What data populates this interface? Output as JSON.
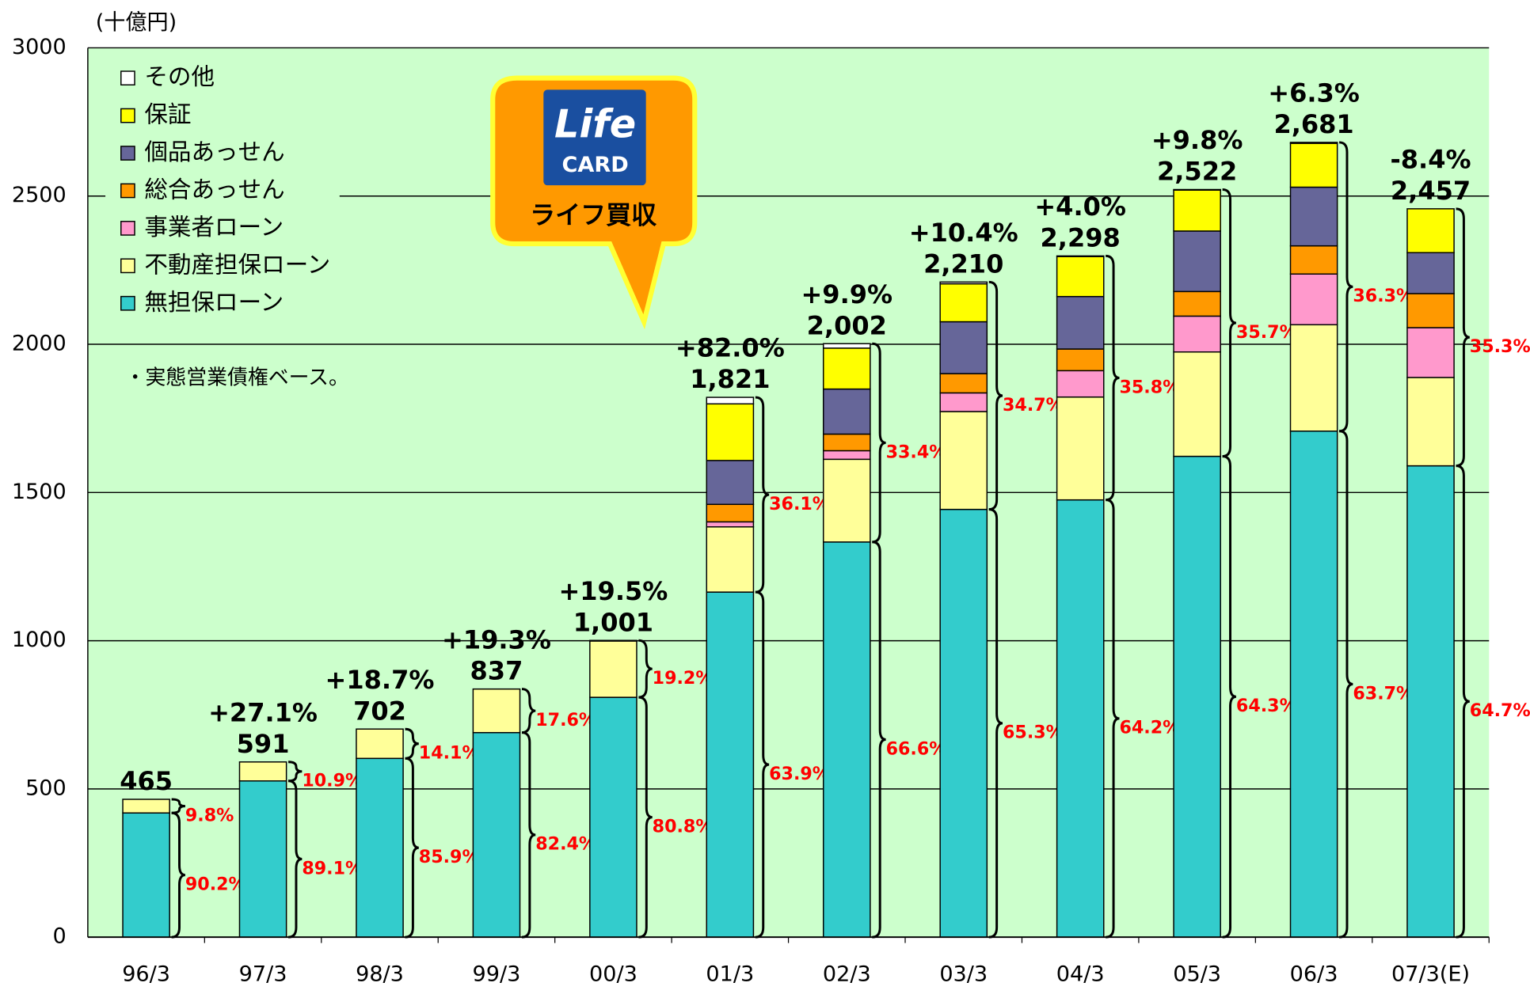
{
  "chart_data": {
    "type": "stacked_bar",
    "y_unit_label": "(十億円)",
    "note": "・実態営業債権ベース。",
    "callout": {
      "text": "ライフ買収",
      "logo_top": "Life",
      "logo_bottom": "CARD"
    },
    "categories": [
      "96/3",
      "97/3",
      "98/3",
      "99/3",
      "00/3",
      "01/3",
      "02/3",
      "03/3",
      "04/3",
      "05/3",
      "06/3",
      "07/3(E)"
    ],
    "series": [
      {
        "name": "無担保ローン",
        "color": "#33cccc",
        "values": [
          419,
          527,
          603,
          690,
          809,
          1164,
          1333,
          1443,
          1475,
          1622,
          1707,
          1590
        ]
      },
      {
        "name": "不動産担保ローン",
        "color": "#ffff99",
        "values": [
          46,
          64,
          99,
          147,
          190,
          220,
          279,
          330,
          347,
          352,
          359,
          298
        ]
      },
      {
        "name": "事業者ローン",
        "color": "#ff99cc",
        "values": [
          0,
          0,
          0,
          0,
          2,
          17,
          29,
          63,
          89,
          121,
          171,
          168
        ]
      },
      {
        "name": "総合あっせん",
        "color": "#ff9900",
        "values": [
          0,
          0,
          0,
          0,
          0,
          59,
          56,
          65,
          73,
          83,
          95,
          115
        ]
      },
      {
        "name": "個品あっせん",
        "color": "#666699",
        "values": [
          0,
          0,
          0,
          0,
          0,
          148,
          152,
          175,
          177,
          204,
          198,
          138
        ]
      },
      {
        "name": "保証",
        "color": "#ffff00",
        "values": [
          0,
          0,
          0,
          0,
          0,
          191,
          138,
          128,
          135,
          138,
          148,
          148
        ]
      },
      {
        "name": "その他",
        "color": "#ffffff",
        "values": [
          0,
          0,
          0,
          0,
          0,
          22,
          15,
          6,
          2,
          2,
          3,
          0
        ]
      }
    ],
    "totals": [
      465,
      591,
      702,
      837,
      1001,
      1821,
      2002,
      2210,
      2298,
      2522,
      2681,
      2457
    ],
    "total_labels": [
      "465",
      "591",
      "702",
      "837",
      "1,001",
      "1,821",
      "2,002",
      "2,210",
      "2,298",
      "2,522",
      "2,681",
      "2,457"
    ],
    "growth_labels": [
      null,
      "+27.1%",
      "+18.7%",
      "+19.3%",
      "+19.5%",
      "+82.0%",
      "+9.9%",
      "+10.4%",
      "+4.0%",
      "+9.8%",
      "+6.3%",
      "-8.4%"
    ],
    "lower_share_labels": [
      "90.2%",
      "89.1%",
      "85.9%",
      "82.4%",
      "80.8%",
      "63.9%",
      "66.6%",
      "65.3%",
      "64.2%",
      "64.3%",
      "63.7%",
      "64.7%"
    ],
    "upper_share_labels": [
      "9.8%",
      "10.9%",
      "14.1%",
      "17.6%",
      "19.2%",
      "36.1%",
      "33.4%",
      "34.7%",
      "35.8%",
      "35.7%",
      "36.3%",
      "35.3%"
    ],
    "ylim": [
      0,
      3000
    ],
    "yticks": [
      0,
      500,
      1000,
      1500,
      2000,
      2500,
      3000
    ],
    "grid": true
  }
}
